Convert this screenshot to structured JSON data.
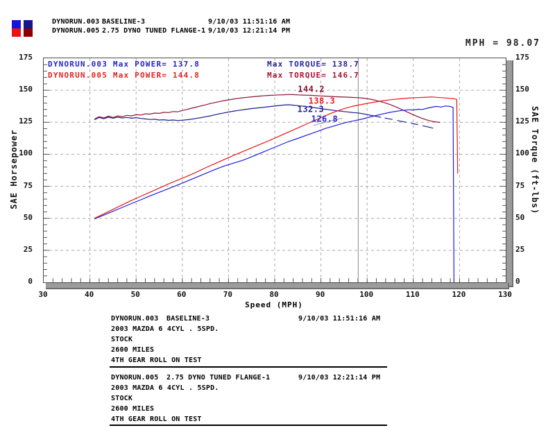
{
  "mph_readout": "MPH = 98.07",
  "header": {
    "swatches": {
      "power_003": "#1414dd",
      "power_005": "#ee1111",
      "torque_003": "#16168c",
      "torque_005": "#8e0000"
    },
    "runs": [
      {
        "file": "DYNORUN.003",
        "desc": "BASELINE-3",
        "timestamp": "9/10/03 11:51:16 AM"
      },
      {
        "file": "DYNORUN.005",
        "desc": "2.75 DYNO TUNED FLANGE-1",
        "timestamp": "9/10/03 12:21:14 PM"
      }
    ]
  },
  "chart_data": {
    "type": "line",
    "title": "",
    "xlabel": "Speed (MPH)",
    "ylabel_left": "SAE Horsepower",
    "ylabel_right": "SAE Torque (ft-lbs)",
    "xlim": [
      30,
      130
    ],
    "ylim": [
      0,
      175
    ],
    "x_major_ticks": [
      30,
      40,
      50,
      60,
      70,
      80,
      90,
      100,
      110,
      120,
      130
    ],
    "x_minor_step": 2,
    "y_major_ticks": [
      0,
      25,
      50,
      75,
      100,
      125,
      150,
      175
    ],
    "y_minor_step": 5,
    "grid": "dashed",
    "grid_color": "#a9a9a9",
    "cursor_mph": 98.07,
    "legend": [
      {
        "label": "DYNORUN.003  Max POWER= 137.8",
        "color": "#2323cc"
      },
      {
        "label": "DYNORUN.005  Max POWER= 144.8",
        "color": "#e32222"
      },
      {
        "label": "Max TORQUE= 138.7",
        "color": "#232399"
      },
      {
        "label": "Max TORQUE= 146.7",
        "color": "#aa1133"
      }
    ],
    "cursor_labels": [
      {
        "text": "144.2",
        "color": "#8e1030",
        "mph": 85.0,
        "value": 148.6
      },
      {
        "text": "138.3",
        "color": "#e32222",
        "mph": 87.3,
        "value": 139.6
      },
      {
        "text": "132.3",
        "color": "#232399",
        "mph": 84.9,
        "value": 133.0
      },
      {
        "text": "126.8",
        "color": "#2323cc",
        "mph": 87.9,
        "value": 125.4
      }
    ],
    "leader_line": {
      "color": "#9a9a9a",
      "points": [
        [
          88.4,
          122.6
        ],
        [
          94.6,
          128.2
        ]
      ]
    },
    "series": [
      {
        "id": "torque-003",
        "name": "DYNORUN.003 Torque",
        "unit": "ft-lbs",
        "color": "#1a1a8c",
        "max": 138.7,
        "paths": [
          [
            [
              41,
              127
            ],
            [
              42,
              128.8
            ],
            [
              43,
              127.8
            ],
            [
              44,
              129
            ],
            [
              45,
              128.2
            ],
            [
              46,
              129
            ],
            [
              47,
              128.3
            ],
            [
              48,
              128.8
            ],
            [
              49,
              128.2
            ],
            [
              50,
              128.6
            ],
            [
              51,
              128
            ],
            [
              52,
              127.6
            ],
            [
              53,
              127.2
            ],
            [
              54,
              127.4
            ],
            [
              55,
              126.8
            ],
            [
              56,
              127
            ],
            [
              57,
              126.5
            ],
            [
              58,
              126.8
            ],
            [
              59,
              126.4
            ],
            [
              60,
              126.6
            ],
            [
              61,
              127
            ],
            [
              62,
              127.4
            ],
            [
              63,
              128
            ],
            [
              64,
              128.6
            ],
            [
              65,
              129.3
            ],
            [
              66,
              130
            ],
            [
              67,
              130.8
            ],
            [
              68,
              131.6
            ],
            [
              69,
              132.3
            ],
            [
              70,
              133
            ],
            [
              71,
              133.6
            ],
            [
              72,
              134.2
            ],
            [
              73,
              134.7
            ],
            [
              75,
              135.7
            ],
            [
              77,
              136.5
            ],
            [
              79,
              137.3
            ],
            [
              81,
              138.1
            ],
            [
              82,
              138.5
            ],
            [
              83,
              138.7
            ],
            [
              84,
              138.4
            ],
            [
              85,
              138
            ],
            [
              87,
              137.2
            ],
            [
              89,
              136.2
            ],
            [
              91,
              135.2
            ],
            [
              93,
              134.2
            ],
            [
              95,
              133.4
            ],
            [
              97,
              132.6
            ],
            [
              98,
              132.3
            ],
            [
              99,
              131.7
            ],
            [
              100,
              131
            ],
            [
              101,
              130.3
            ],
            [
              102,
              129.6
            ],
            [
              103,
              128.9
            ]
          ],
          [
            [
              103.8,
              128.3
            ],
            [
              105.5,
              127.2
            ]
          ],
          [
            [
              106.5,
              126.4
            ],
            [
              108.5,
              125
            ]
          ],
          [
            [
              109.5,
              124.2
            ],
            [
              111,
              123.2
            ]
          ],
          [
            [
              112,
              122.3
            ],
            [
              113,
              121.5
            ],
            [
              114.3,
              120.4
            ]
          ]
        ]
      },
      {
        "id": "torque-005",
        "name": "DYNORUN.005 Torque",
        "unit": "ft-lbs",
        "color": "#8e1030",
        "max": 146.7,
        "paths": [
          [
            [
              41,
              127.5
            ],
            [
              42,
              129.3
            ],
            [
              43,
              128.4
            ],
            [
              44,
              129.8
            ],
            [
              45,
              128.8
            ],
            [
              46,
              130
            ],
            [
              47,
              129.4
            ],
            [
              48,
              130.4
            ],
            [
              49,
              130
            ],
            [
              50,
              131
            ],
            [
              51,
              130.6
            ],
            [
              52,
              131.6
            ],
            [
              53,
              131.4
            ],
            [
              54,
              132.2
            ],
            [
              55,
              132
            ],
            [
              56,
              132.8
            ],
            [
              57,
              132.6
            ],
            [
              58,
              133.4
            ],
            [
              59,
              133.2
            ],
            [
              60,
              134.2
            ],
            [
              61,
              135
            ],
            [
              62,
              136
            ],
            [
              63,
              136.8
            ],
            [
              64,
              137.8
            ],
            [
              65,
              138.6
            ],
            [
              66,
              139.6
            ],
            [
              67,
              140.4
            ],
            [
              68,
              141.2
            ],
            [
              69,
              141.9
            ],
            [
              70,
              142.5
            ],
            [
              71,
              143.1
            ],
            [
              72,
              143.7
            ],
            [
              73,
              144.1
            ],
            [
              74,
              144.5
            ],
            [
              75,
              144.9
            ],
            [
              76,
              145.2
            ],
            [
              77,
              145.5
            ],
            [
              78,
              145.8
            ],
            [
              79,
              146
            ],
            [
              80,
              146.2
            ],
            [
              81,
              146.4
            ],
            [
              82,
              146.5
            ],
            [
              83,
              146.7
            ],
            [
              84,
              146.6
            ],
            [
              85,
              146.4
            ],
            [
              86,
              146.3
            ],
            [
              87,
              146.1
            ],
            [
              88,
              146
            ],
            [
              89,
              145.8
            ],
            [
              90,
              145.6
            ],
            [
              91,
              145.4
            ],
            [
              92,
              145.2
            ],
            [
              93,
              145
            ],
            [
              94,
              144.9
            ],
            [
              95,
              144.7
            ],
            [
              96,
              144.6
            ],
            [
              97,
              144.4
            ],
            [
              98,
              144.2
            ],
            [
              99,
              143.9
            ],
            [
              100,
              143.4
            ],
            [
              101,
              142.8
            ],
            [
              102,
              142
            ],
            [
              103,
              141.1
            ],
            [
              104,
              140
            ],
            [
              105,
              138.8
            ],
            [
              106,
              137.4
            ],
            [
              107,
              135.8
            ],
            [
              108,
              134.2
            ],
            [
              109,
              132.5
            ],
            [
              110,
              130.9
            ],
            [
              111,
              129.3
            ],
            [
              112,
              127.9
            ],
            [
              113,
              126.7
            ],
            [
              114,
              125.8
            ],
            [
              115,
              125.2
            ],
            [
              115.8,
              124.9
            ]
          ]
        ]
      },
      {
        "id": "power-003",
        "name": "DYNORUN.003 Power",
        "unit": "HP",
        "color": "#1b1be0",
        "max": 137.8,
        "paths": [
          [
            [
              41,
              49.5
            ],
            [
              43,
              52.5
            ],
            [
              45,
              55.5
            ],
            [
              47,
              58.5
            ],
            [
              49,
              61.5
            ],
            [
              51,
              64.5
            ],
            [
              53,
              67.5
            ],
            [
              55,
              70.3
            ],
            [
              57,
              73.2
            ],
            [
              59,
              76
            ],
            [
              61,
              79
            ],
            [
              63,
              82
            ],
            [
              65,
              85
            ],
            [
              67,
              88
            ],
            [
              69,
              90.8
            ],
            [
              71,
              93
            ],
            [
              73,
              95.2
            ],
            [
              75,
              98
            ],
            [
              77,
              101
            ],
            [
              79,
              104
            ],
            [
              81,
              107
            ],
            [
              83,
              110
            ],
            [
              85,
              112.4
            ],
            [
              87,
              115
            ],
            [
              89,
              117.5
            ],
            [
              91,
              120.2
            ],
            [
              93,
              122.3
            ],
            [
              95,
              124.5
            ],
            [
              97,
              126
            ],
            [
              99,
              127.6
            ],
            [
              101,
              129.5
            ],
            [
              103,
              131.2
            ],
            [
              105,
              132.8
            ],
            [
              107,
              134
            ],
            [
              109,
              134.8
            ],
            [
              110,
              134.6
            ],
            [
              111,
              135.2
            ],
            [
              112,
              135
            ],
            [
              113,
              136
            ],
            [
              114,
              136.8
            ],
            [
              115,
              137.4
            ],
            [
              116,
              136.9
            ],
            [
              117,
              137.8
            ],
            [
              118,
              137.3
            ],
            [
              118.6,
              136.6
            ],
            [
              118.8,
              0
            ]
          ]
        ]
      },
      {
        "id": "power-005",
        "name": "DYNORUN.005 Power",
        "unit": "HP",
        "color": "#e31717",
        "max": 144.8,
        "paths": [
          [
            [
              41,
              50
            ],
            [
              43,
              53.5
            ],
            [
              45,
              57
            ],
            [
              47,
              60.5
            ],
            [
              49,
              64
            ],
            [
              51,
              67.2
            ],
            [
              53,
              70.4
            ],
            [
              55,
              73.6
            ],
            [
              57,
              76.8
            ],
            [
              59,
              79.8
            ],
            [
              61,
              82.8
            ],
            [
              63,
              86
            ],
            [
              65,
              89.4
            ],
            [
              67,
              92.6
            ],
            [
              69,
              95.8
            ],
            [
              71,
              99
            ],
            [
              73,
              102
            ],
            [
              75,
              105
            ],
            [
              77,
              108
            ],
            [
              79,
              111
            ],
            [
              81,
              114.2
            ],
            [
              83,
              117.4
            ],
            [
              85,
              120.6
            ],
            [
              87,
              123.8
            ],
            [
              89,
              127
            ],
            [
              91,
              130.2
            ],
            [
              93,
              133.2
            ],
            [
              95,
              135.6
            ],
            [
              97,
              137.6
            ],
            [
              99,
              139
            ],
            [
              101,
              140.4
            ],
            [
              103,
              141.6
            ],
            [
              105,
              142.6
            ],
            [
              107,
              143.3
            ],
            [
              109,
              143.9
            ],
            [
              111,
              144.3
            ],
            [
              113,
              144.6
            ],
            [
              114,
              144.8
            ],
            [
              115,
              144.5
            ],
            [
              116,
              144.2
            ],
            [
              117,
              144
            ],
            [
              118,
              143.7
            ],
            [
              119,
              143.3
            ],
            [
              119.4,
              142.7
            ],
            [
              119.6,
              85
            ]
          ]
        ]
      }
    ]
  },
  "footer_blocks": [
    {
      "file": "DYNORUN.003",
      "desc": "BASELINE-3",
      "timestamp": "9/10/03 11:51:16 AM",
      "lines": [
        "2003 MAZDA 6 4CYL . 5SPD.",
        "STOCK",
        "2600 MILES",
        "4TH GEAR ROLL ON TEST"
      ]
    },
    {
      "file": "DYNORUN.005",
      "desc": "2.75 DYNO TUNED FLANGE-1",
      "timestamp": "9/10/03 12:21:14 PM",
      "lines": [
        "2003 MAZDA 6 4CYL . 5SPD.",
        "STOCK",
        "2600 MILES",
        "4TH GEAR ROLL ON TEST"
      ]
    }
  ]
}
